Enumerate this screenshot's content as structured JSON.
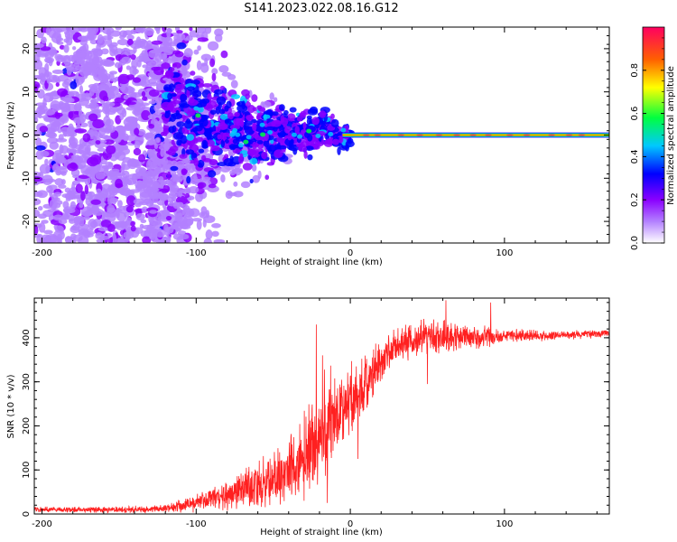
{
  "title": "S141.2023.022.08.16.G12",
  "chart_data": [
    {
      "type": "heatmap",
      "xlabel": "Height of straight line (km)",
      "ylabel": "Frequency (Hz)",
      "xlim": [
        -205,
        168
      ],
      "ylim": [
        -25,
        25
      ],
      "x_ticks": [
        -200,
        -100,
        0,
        100
      ],
      "y_ticks": [
        -20,
        -10,
        0,
        10,
        20
      ],
      "colorbar": {
        "label": "Normalized spectral amplitude",
        "range": [
          0,
          1
        ],
        "ticks": [
          "0.0",
          "0.2",
          "0.4",
          "0.6",
          "0.8"
        ],
        "colors": [
          "#ffffff",
          "#b380ff",
          "#8a00ff",
          "#0000ff",
          "#00c8ff",
          "#00ff40",
          "#ffff00",
          "#ff6000",
          "#ff0060"
        ]
      },
      "signal_trace": [
        {
          "x": -120,
          "f": 8
        },
        {
          "x": -100,
          "f": 3
        },
        {
          "x": -80,
          "f": 1
        },
        {
          "x": -60,
          "f": 0
        },
        {
          "x": -40,
          "f": 1
        },
        {
          "x": -25,
          "f": 1
        },
        {
          "x": -15,
          "f": 2
        },
        {
          "x": -5,
          "f": -1
        },
        {
          "x": 0,
          "f": 0
        },
        {
          "x": 168,
          "f": 0
        }
      ]
    },
    {
      "type": "line",
      "xlabel": "Height of straight line (km)",
      "ylabel": "SNR (10 * v/v)",
      "xlim": [
        -205,
        168
      ],
      "ylim": [
        0,
        490
      ],
      "x_ticks": [
        -200,
        -100,
        0,
        100
      ],
      "y_ticks": [
        0,
        100,
        200,
        300,
        400
      ],
      "color": "#ff2020",
      "envelope": [
        {
          "x": -205,
          "mean": 10,
          "spread": 6
        },
        {
          "x": -150,
          "mean": 10,
          "spread": 6
        },
        {
          "x": -120,
          "mean": 12,
          "spread": 8
        },
        {
          "x": -100,
          "mean": 25,
          "spread": 18
        },
        {
          "x": -80,
          "mean": 45,
          "spread": 30
        },
        {
          "x": -60,
          "mean": 65,
          "spread": 45
        },
        {
          "x": -45,
          "mean": 85,
          "spread": 60
        },
        {
          "x": -35,
          "mean": 110,
          "spread": 80
        },
        {
          "x": -25,
          "mean": 150,
          "spread": 100
        },
        {
          "x": -15,
          "mean": 200,
          "spread": 110
        },
        {
          "x": -5,
          "mean": 240,
          "spread": 90
        },
        {
          "x": 5,
          "mean": 270,
          "spread": 70
        },
        {
          "x": 15,
          "mean": 320,
          "spread": 50
        },
        {
          "x": 25,
          "mean": 370,
          "spread": 40
        },
        {
          "x": 40,
          "mean": 395,
          "spread": 35
        },
        {
          "x": 60,
          "mean": 405,
          "spread": 35
        },
        {
          "x": 80,
          "mean": 400,
          "spread": 25
        },
        {
          "x": 100,
          "mean": 405,
          "spread": 15
        },
        {
          "x": 130,
          "mean": 405,
          "spread": 10
        },
        {
          "x": 168,
          "mean": 410,
          "spread": 8
        }
      ],
      "spikes": [
        {
          "x": -22,
          "y": 430
        },
        {
          "x": -18,
          "y": 360
        },
        {
          "x": 62,
          "y": 485
        },
        {
          "x": 91,
          "y": 480
        },
        {
          "x": 50,
          "y": 295
        },
        {
          "x": 5,
          "y": 125
        },
        {
          "x": -30,
          "y": 30
        },
        {
          "x": -15,
          "y": 25
        }
      ]
    }
  ]
}
